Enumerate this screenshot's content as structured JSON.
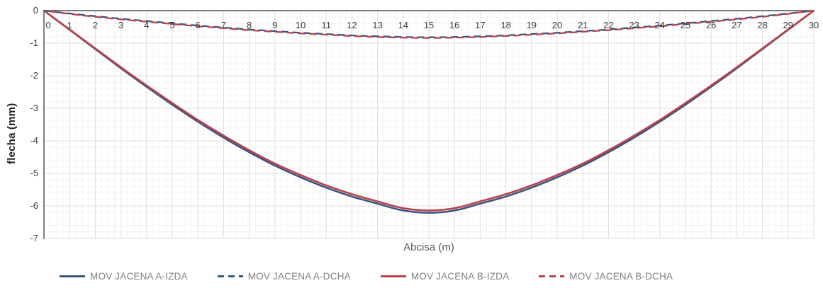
{
  "chart_data": {
    "type": "line",
    "title": "",
    "xlabel": "Abcisa (m)",
    "ylabel": "flecha (mm)",
    "xlim": [
      0,
      30
    ],
    "ylim": [
      -7,
      0
    ],
    "x_ticks": [
      "0",
      "1",
      "2",
      "3",
      "4",
      "5",
      "6",
      "7",
      "8",
      "9",
      "10",
      "11",
      "12",
      "13",
      "14",
      "15",
      "16",
      "17",
      "18",
      "19",
      "20",
      "21",
      "22",
      "23",
      "24",
      "25",
      "26",
      "27",
      "28",
      "29",
      "30"
    ],
    "y_ticks": [
      "0",
      "-1",
      "-2",
      "-3",
      "-4",
      "-5",
      "-6",
      "-7"
    ],
    "grid": {
      "minor_x_step": 0.25,
      "minor_y_step": 0.2,
      "major_x_step": 1,
      "major_y_step": 1
    },
    "legend_position": "bottom",
    "x": [
      0,
      1,
      2,
      3,
      4,
      5,
      6,
      7,
      8,
      9,
      10,
      11,
      12,
      13,
      14,
      15,
      16,
      17,
      18,
      19,
      20,
      21,
      22,
      23,
      24,
      25,
      26,
      27,
      28,
      29,
      30
    ],
    "series": [
      {
        "name": "MOV JACENA A-IZDA",
        "color": "#3B547F",
        "style": "solid",
        "values": [
          0,
          -0.59,
          -1.18,
          -1.77,
          -2.34,
          -2.89,
          -3.41,
          -3.9,
          -4.35,
          -4.76,
          -5.12,
          -5.44,
          -5.71,
          -5.93,
          -6.14,
          -6.21,
          -6.14,
          -5.93,
          -5.71,
          -5.44,
          -5.12,
          -4.76,
          -4.35,
          -3.9,
          -3.41,
          -2.89,
          -2.34,
          -1.77,
          -1.18,
          -0.59,
          0
        ]
      },
      {
        "name": "MOV JACENA A-DCHA",
        "color": "#3B547F",
        "style": "dashed",
        "values": [
          0,
          -0.09,
          -0.17,
          -0.25,
          -0.32,
          -0.39,
          -0.46,
          -0.52,
          -0.58,
          -0.63,
          -0.68,
          -0.72,
          -0.76,
          -0.79,
          -0.81,
          -0.82,
          -0.81,
          -0.79,
          -0.76,
          -0.72,
          -0.68,
          -0.63,
          -0.58,
          -0.52,
          -0.46,
          -0.39,
          -0.32,
          -0.25,
          -0.17,
          -0.09,
          0
        ]
      },
      {
        "name": "MOV JACENA B-IZDA",
        "color": "#B8434B",
        "style": "solid",
        "values": [
          0,
          -0.58,
          -1.16,
          -1.74,
          -2.3,
          -2.84,
          -3.36,
          -3.84,
          -4.29,
          -4.7,
          -5.05,
          -5.37,
          -5.64,
          -5.86,
          -6.07,
          -6.14,
          -6.07,
          -5.86,
          -5.64,
          -5.37,
          -5.05,
          -4.7,
          -4.29,
          -3.84,
          -3.36,
          -2.84,
          -2.3,
          -1.74,
          -1.16,
          -0.58,
          0
        ]
      },
      {
        "name": "MOV JACENA B-DCHA",
        "color": "#B8434B",
        "style": "dashed",
        "values": [
          0,
          -0.1,
          -0.19,
          -0.27,
          -0.34,
          -0.41,
          -0.48,
          -0.54,
          -0.6,
          -0.65,
          -0.7,
          -0.74,
          -0.78,
          -0.81,
          -0.83,
          -0.84,
          -0.83,
          -0.81,
          -0.78,
          -0.74,
          -0.7,
          -0.65,
          -0.6,
          -0.54,
          -0.48,
          -0.41,
          -0.34,
          -0.27,
          -0.19,
          -0.1,
          0
        ]
      }
    ],
    "colors": {
      "axis_top": "#4c4c4c",
      "axis_left": "#808080",
      "grid_major": "#dfdfdf",
      "grid_minor": "#f4f4f4",
      "tick_text": "#3c3c3c",
      "legend_text": "#7f7f7f"
    }
  }
}
